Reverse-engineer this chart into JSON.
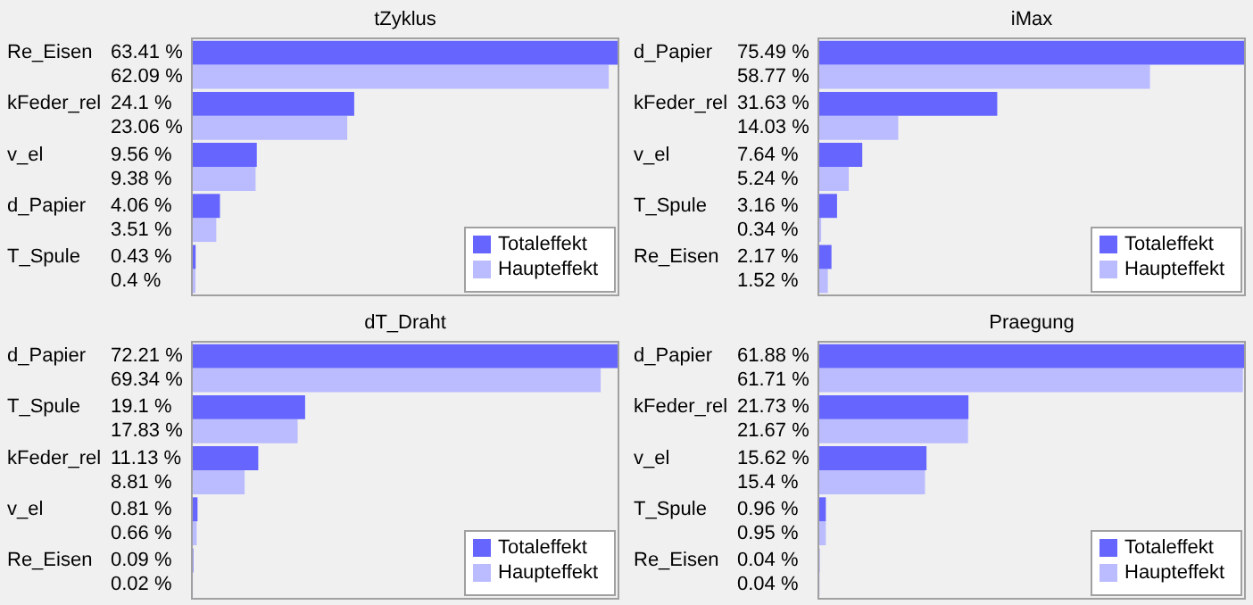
{
  "chart_data": [
    {
      "type": "bar",
      "orientation": "horizontal",
      "title": "tZyklus",
      "legend": "bottom right",
      "categories": [
        "Re_Eisen",
        "kFeder_rel",
        "v_el",
        "d_Papier",
        "T_Spule"
      ],
      "series": [
        {
          "name": "Totaleffekt",
          "color": "#6666ff",
          "values": [
            63.41,
            24.1,
            9.56,
            4.06,
            0.43
          ],
          "value_labels": [
            "63.41 %",
            "24.1 %",
            "9.56 %",
            "4.06 %",
            "0.43 %"
          ]
        },
        {
          "name": "Haupteffekt",
          "color": "#bbbbff",
          "values": [
            62.09,
            23.06,
            9.38,
            3.51,
            0.4
          ],
          "value_labels": [
            "62.09 %",
            "23.06 %",
            "9.38 %",
            "3.51 %",
            "0.4 %"
          ]
        }
      ]
    },
    {
      "type": "bar",
      "orientation": "horizontal",
      "title": "iMax",
      "legend": "bottom right",
      "categories": [
        "d_Papier",
        "kFeder_rel",
        "v_el",
        "T_Spule",
        "Re_Eisen"
      ],
      "series": [
        {
          "name": "Totaleffekt",
          "color": "#6666ff",
          "values": [
            75.49,
            31.63,
            7.64,
            3.16,
            2.17
          ],
          "value_labels": [
            "75.49 %",
            "31.63 %",
            "7.64 %",
            "3.16 %",
            "2.17 %"
          ]
        },
        {
          "name": "Haupteffekt",
          "color": "#bbbbff",
          "values": [
            58.77,
            14.03,
            5.24,
            0.34,
            1.52
          ],
          "value_labels": [
            "58.77 %",
            "14.03 %",
            "5.24 %",
            "0.34 %",
            "1.52 %"
          ]
        }
      ]
    },
    {
      "type": "bar",
      "orientation": "horizontal",
      "title": "dT_Draht",
      "legend": "bottom right",
      "categories": [
        "d_Papier",
        "T_Spule",
        "kFeder_rel",
        "v_el",
        "Re_Eisen"
      ],
      "series": [
        {
          "name": "Totaleffekt",
          "color": "#6666ff",
          "values": [
            72.21,
            19.1,
            11.13,
            0.81,
            0.09
          ],
          "value_labels": [
            "72.21 %",
            "19.1 %",
            "11.13 %",
            "0.81 %",
            "0.09 %"
          ]
        },
        {
          "name": "Haupteffekt",
          "color": "#bbbbff",
          "values": [
            69.34,
            17.83,
            8.81,
            0.66,
            0.02
          ],
          "value_labels": [
            "69.34 %",
            "17.83 %",
            "8.81 %",
            "0.66 %",
            "0.02 %"
          ]
        }
      ]
    },
    {
      "type": "bar",
      "orientation": "horizontal",
      "title": "Praegung",
      "legend": "bottom right",
      "categories": [
        "d_Papier",
        "kFeder_rel",
        "v_el",
        "T_Spule",
        "Re_Eisen"
      ],
      "series": [
        {
          "name": "Totaleffekt",
          "color": "#6666ff",
          "values": [
            61.88,
            21.73,
            15.62,
            0.96,
            0.04
          ],
          "value_labels": [
            "61.88 %",
            "21.73 %",
            "15.62 %",
            "0.96 %",
            "0.04 %"
          ]
        },
        {
          "name": "Haupteffekt",
          "color": "#bbbbff",
          "values": [
            61.71,
            21.67,
            15.4,
            0.95,
            0.04
          ],
          "value_labels": [
            "61.71 %",
            "21.67 %",
            "15.4 %",
            "0.95 %",
            "0.04 %"
          ]
        }
      ]
    }
  ]
}
